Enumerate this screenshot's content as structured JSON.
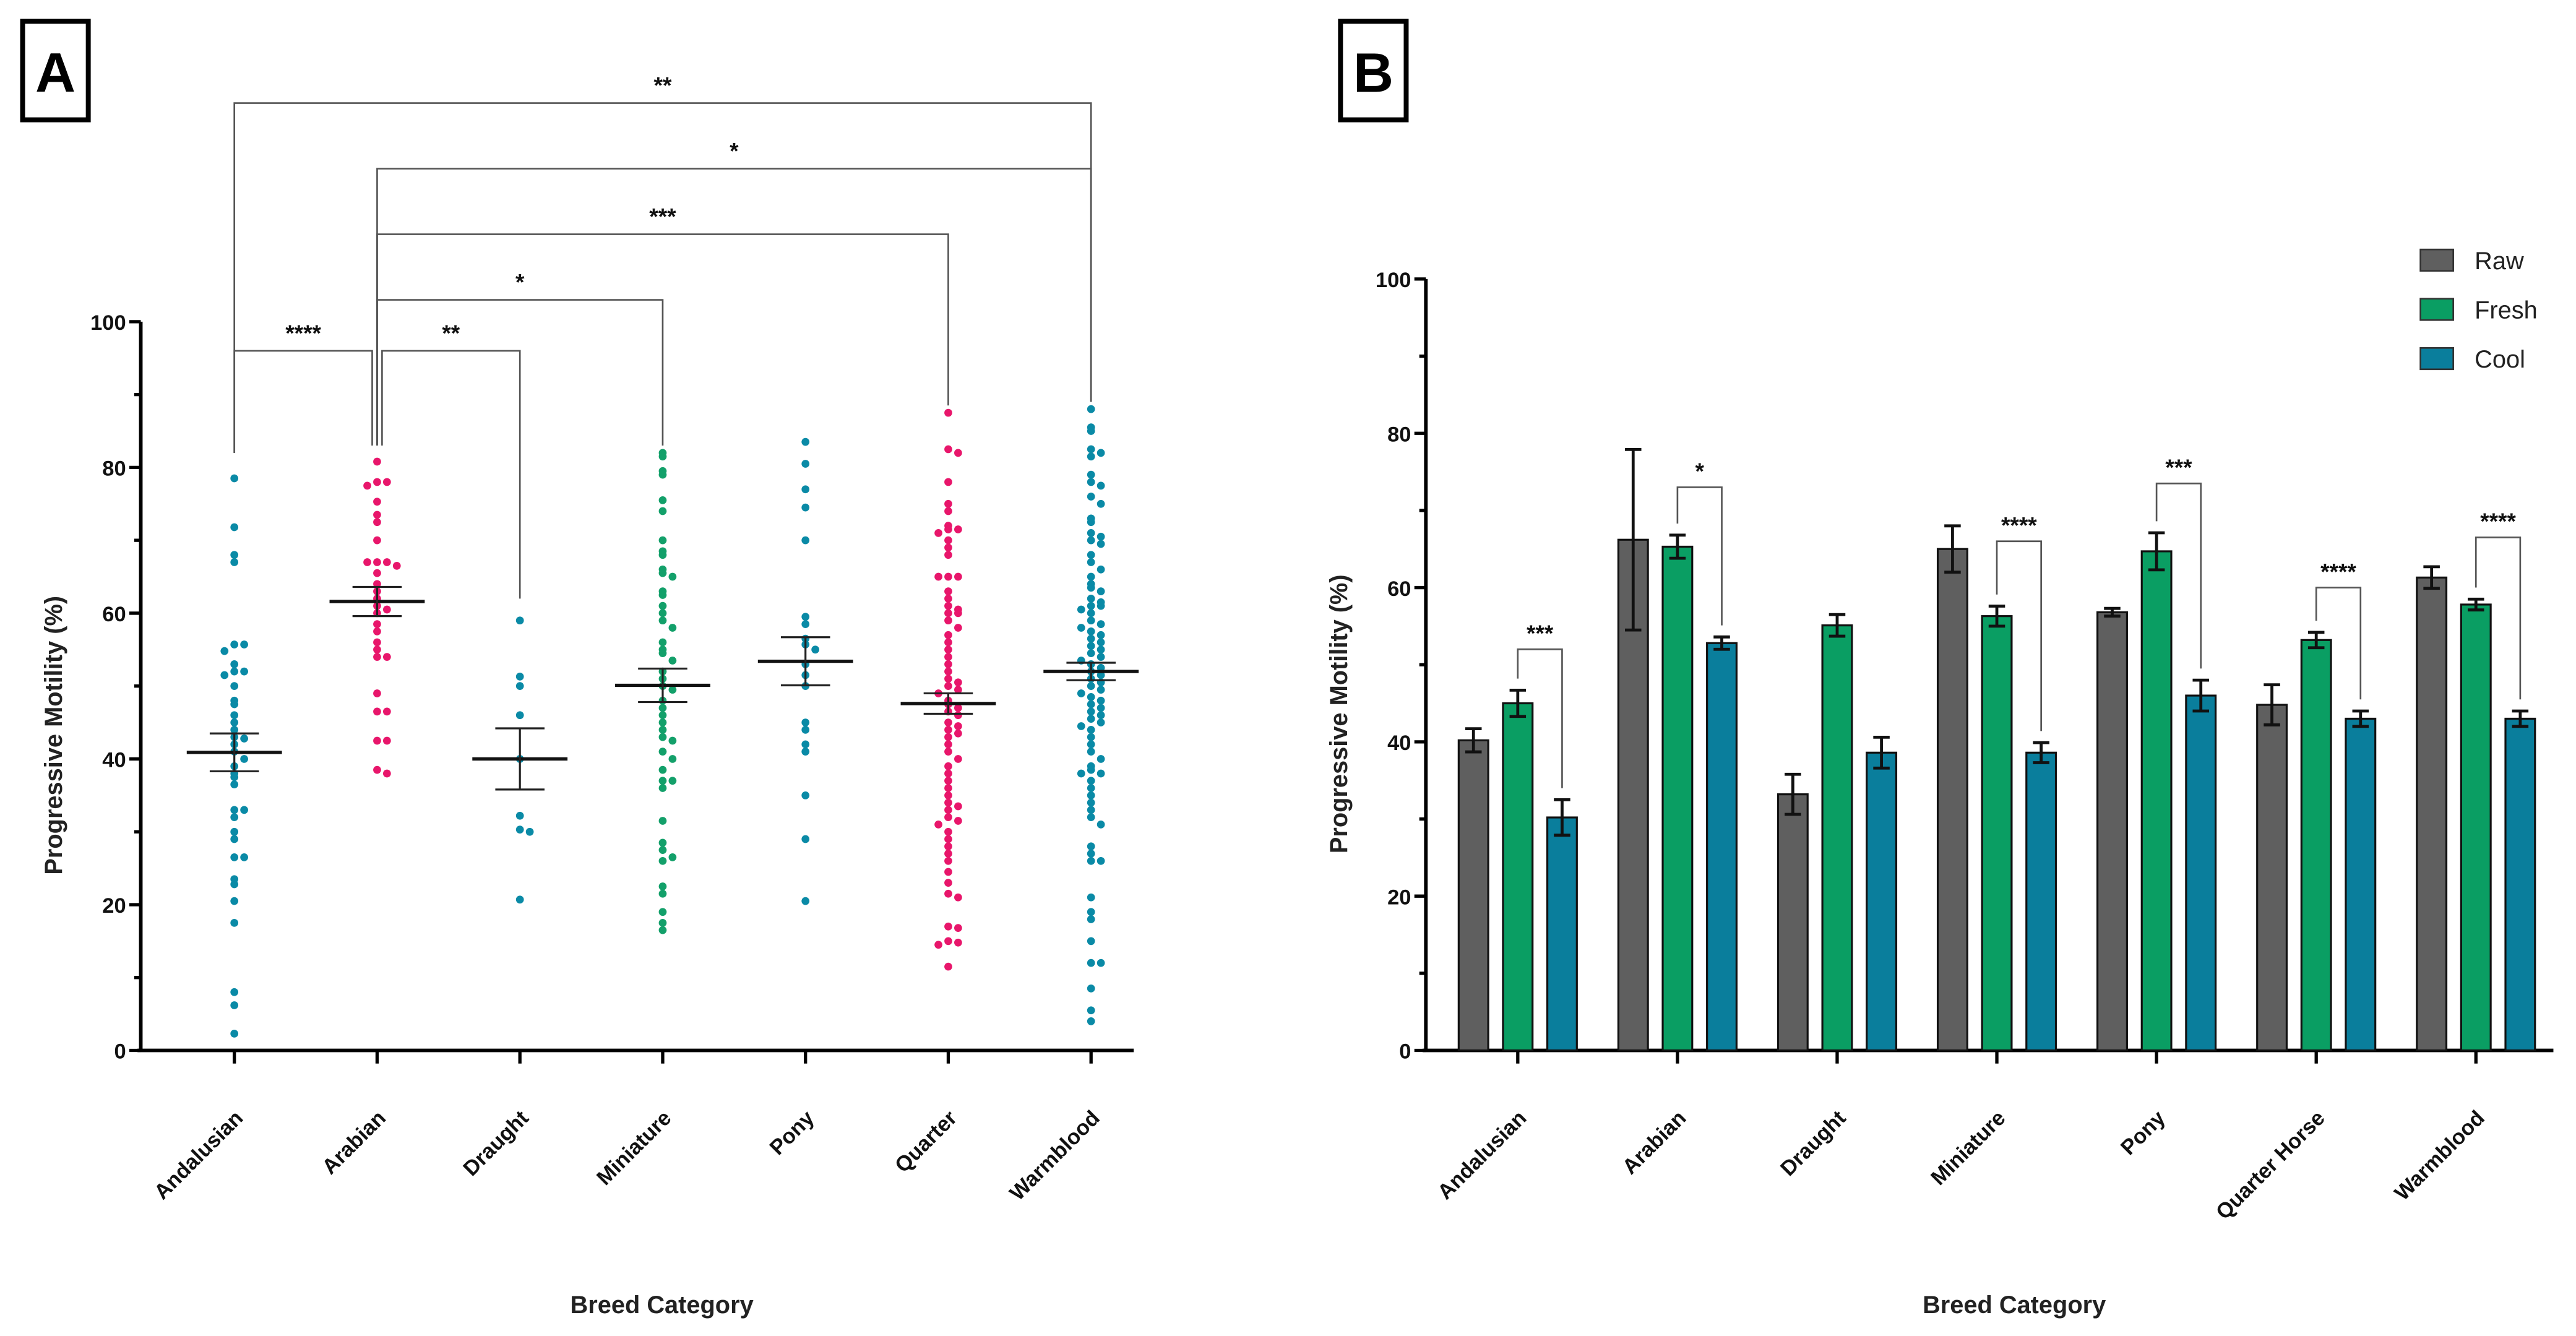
{
  "chart_data": [
    {
      "panel": "A",
      "type": "scatter",
      "xlabel": "Breed Category",
      "ylabel": "Progressive Motility (%)",
      "ylim": [
        0,
        100
      ],
      "yticks": [
        "0",
        "20",
        "40",
        "60",
        "80",
        "100"
      ],
      "categories": [
        "Andalusian",
        "Arabian",
        "Draught",
        "Miniature",
        "Pony",
        "Quarter",
        "Warmblood"
      ],
      "colors": [
        "#0a8aa6",
        "#e8166b",
        "#0a8aa6",
        "#13a06a",
        "#0a8aa6",
        "#e8166b",
        "#0a8aa6"
      ],
      "means": [
        40.9,
        61.6,
        40.0,
        50.1,
        53.4,
        47.6,
        52.0
      ],
      "sem": [
        2.6,
        2.0,
        4.2,
        2.3,
        3.3,
        1.4,
        1.2
      ],
      "points": [
        [
          78.5,
          71.8,
          68,
          67,
          55.7,
          55.7,
          54.8,
          53,
          52,
          52,
          51.5,
          50,
          48,
          47.5,
          46,
          45,
          44,
          43,
          42.8,
          42,
          41,
          40,
          39,
          38,
          37.5,
          36.5,
          33,
          33,
          32,
          30,
          29,
          26.5,
          26.5,
          23.5,
          22.8,
          20.5,
          17.5,
          8,
          6.2,
          2.3
        ],
        [
          80.8,
          78,
          78,
          77.5,
          75.3,
          73.5,
          72.5,
          70,
          67,
          67,
          67,
          66.5,
          65.5,
          64,
          63,
          62,
          61,
          60.5,
          60,
          58.5,
          57.5,
          56,
          55,
          54,
          54,
          49,
          46.5,
          46.5,
          42.5,
          42.5,
          38.5,
          38
        ],
        [
          59,
          51.3,
          50,
          46,
          40,
          32.2,
          30.3,
          30,
          20.7
        ],
        [
          82,
          81.5,
          79.5,
          79,
          75.5,
          74,
          70,
          68.5,
          68,
          66,
          65.5,
          65,
          63,
          62.5,
          61,
          60,
          59,
          58,
          56,
          55,
          54.5,
          53.5,
          52,
          51,
          50,
          49.5,
          48,
          47,
          46,
          45,
          44,
          43,
          42.5,
          41,
          40,
          38.5,
          37,
          37,
          36,
          31.5,
          28.5,
          27.5,
          26.5,
          26,
          22.5,
          21.5,
          19,
          17.5,
          16.5
        ],
        [
          83.5,
          80.5,
          77,
          74.5,
          70,
          59.5,
          58.5,
          56.5,
          55.7,
          55,
          53,
          51.5,
          50,
          45,
          44,
          42,
          41,
          35,
          29,
          20.5
        ],
        [
          87.5,
          82.5,
          82,
          78,
          75,
          74,
          72,
          71.5,
          71.5,
          71,
          70,
          69,
          68,
          65,
          65,
          65,
          63,
          62,
          61,
          60.5,
          60,
          60,
          59,
          58,
          57,
          56,
          55,
          54,
          53,
          52,
          51,
          50.5,
          50,
          49.5,
          49,
          48,
          47.5,
          47,
          46.5,
          46,
          45,
          44.5,
          44,
          43.5,
          43,
          42,
          41,
          40,
          39,
          38,
          37,
          36,
          35,
          34,
          33.5,
          33,
          32,
          31.5,
          31,
          30,
          29,
          28,
          27,
          26,
          24.5,
          23,
          21.5,
          21,
          17,
          16.8,
          15,
          14.8,
          14.5,
          11.5
        ],
        [
          88,
          85.5,
          85,
          82.5,
          82,
          81.5,
          79,
          78,
          77.5,
          76,
          75,
          73,
          72.5,
          71,
          70.5,
          70,
          69.5,
          68,
          67,
          66,
          65,
          64,
          63.5,
          63,
          62,
          61.5,
          61,
          61,
          60.5,
          60,
          59,
          58.5,
          58,
          57.5,
          57,
          56.5,
          56,
          55.5,
          55,
          54.5,
          54,
          53.5,
          53,
          52.5,
          52,
          51.5,
          51,
          50.5,
          50,
          49.5,
          49,
          48.5,
          48,
          47.5,
          47,
          46.5,
          46,
          45.5,
          45,
          44.5,
          44,
          43,
          42,
          41,
          40,
          39,
          38.5,
          38,
          38,
          37,
          36,
          35,
          34,
          33,
          32,
          31,
          28,
          27,
          26,
          26,
          21,
          19,
          18,
          15,
          12,
          12,
          8.5,
          5.5,
          4
        ]
      ],
      "brackets": [
        {
          "from": "Andalusian",
          "to": "Arabian",
          "label": "****",
          "level": 96
        },
        {
          "from": "Arabian",
          "to": "Draught",
          "label": "**",
          "level": 96
        },
        {
          "from": "Arabian",
          "to": "Miniature",
          "label": "*",
          "level": 103
        },
        {
          "from": "Arabian",
          "to": "Quarter",
          "label": "***",
          "level": 112
        },
        {
          "from": "Arabian",
          "to": "Warmblood",
          "label": "*",
          "level": 121
        },
        {
          "from": "Andalusian",
          "to": "Warmblood",
          "label": "**",
          "level": 130
        }
      ]
    },
    {
      "panel": "B",
      "type": "bar",
      "xlabel": "Breed Category",
      "ylabel": "Progressive Motility (%)",
      "ylim": [
        0,
        100
      ],
      "yticks": [
        "0",
        "20",
        "40",
        "60",
        "80",
        "100"
      ],
      "categories": [
        "Andalusian",
        "Arabian",
        "Draught",
        "Miniature",
        "Pony",
        "Quarter Horse",
        "Warmblood"
      ],
      "legend_position": "top-right",
      "series": [
        {
          "name": "Raw",
          "color": "#5f5f5f",
          "values": [
            40.2,
            66.2,
            33.2,
            65.0,
            56.8,
            44.8,
            61.3
          ],
          "error": [
            1.5,
            11.7,
            2.6,
            3.0,
            0.5,
            2.6,
            1.4
          ]
        },
        {
          "name": "Fresh",
          "color": "#0a9e63",
          "values": [
            45.0,
            65.3,
            55.1,
            56.3,
            64.7,
            53.2,
            57.8
          ],
          "error": [
            1.7,
            1.5,
            1.4,
            1.3,
            2.4,
            1.0,
            0.7
          ]
        },
        {
          "name": "Cool",
          "color": "#0a7e9c",
          "values": [
            30.2,
            52.8,
            38.6,
            38.6,
            46.0,
            43.0,
            43.0
          ],
          "error": [
            2.3,
            0.8,
            2.0,
            1.3,
            2.0,
            1.0,
            1.0
          ]
        }
      ],
      "brackets": [
        {
          "category": "Andalusian",
          "label": "***",
          "level": 52
        },
        {
          "category": "Arabian",
          "label": "*",
          "level": 73
        },
        {
          "category": "Miniature",
          "label": "****",
          "level": 66
        },
        {
          "category": "Pony",
          "label": "***",
          "level": 73.5
        },
        {
          "category": "Quarter Horse",
          "label": "****",
          "level": 60
        },
        {
          "category": "Warmblood",
          "label": "****",
          "level": 66.5
        }
      ]
    }
  ]
}
